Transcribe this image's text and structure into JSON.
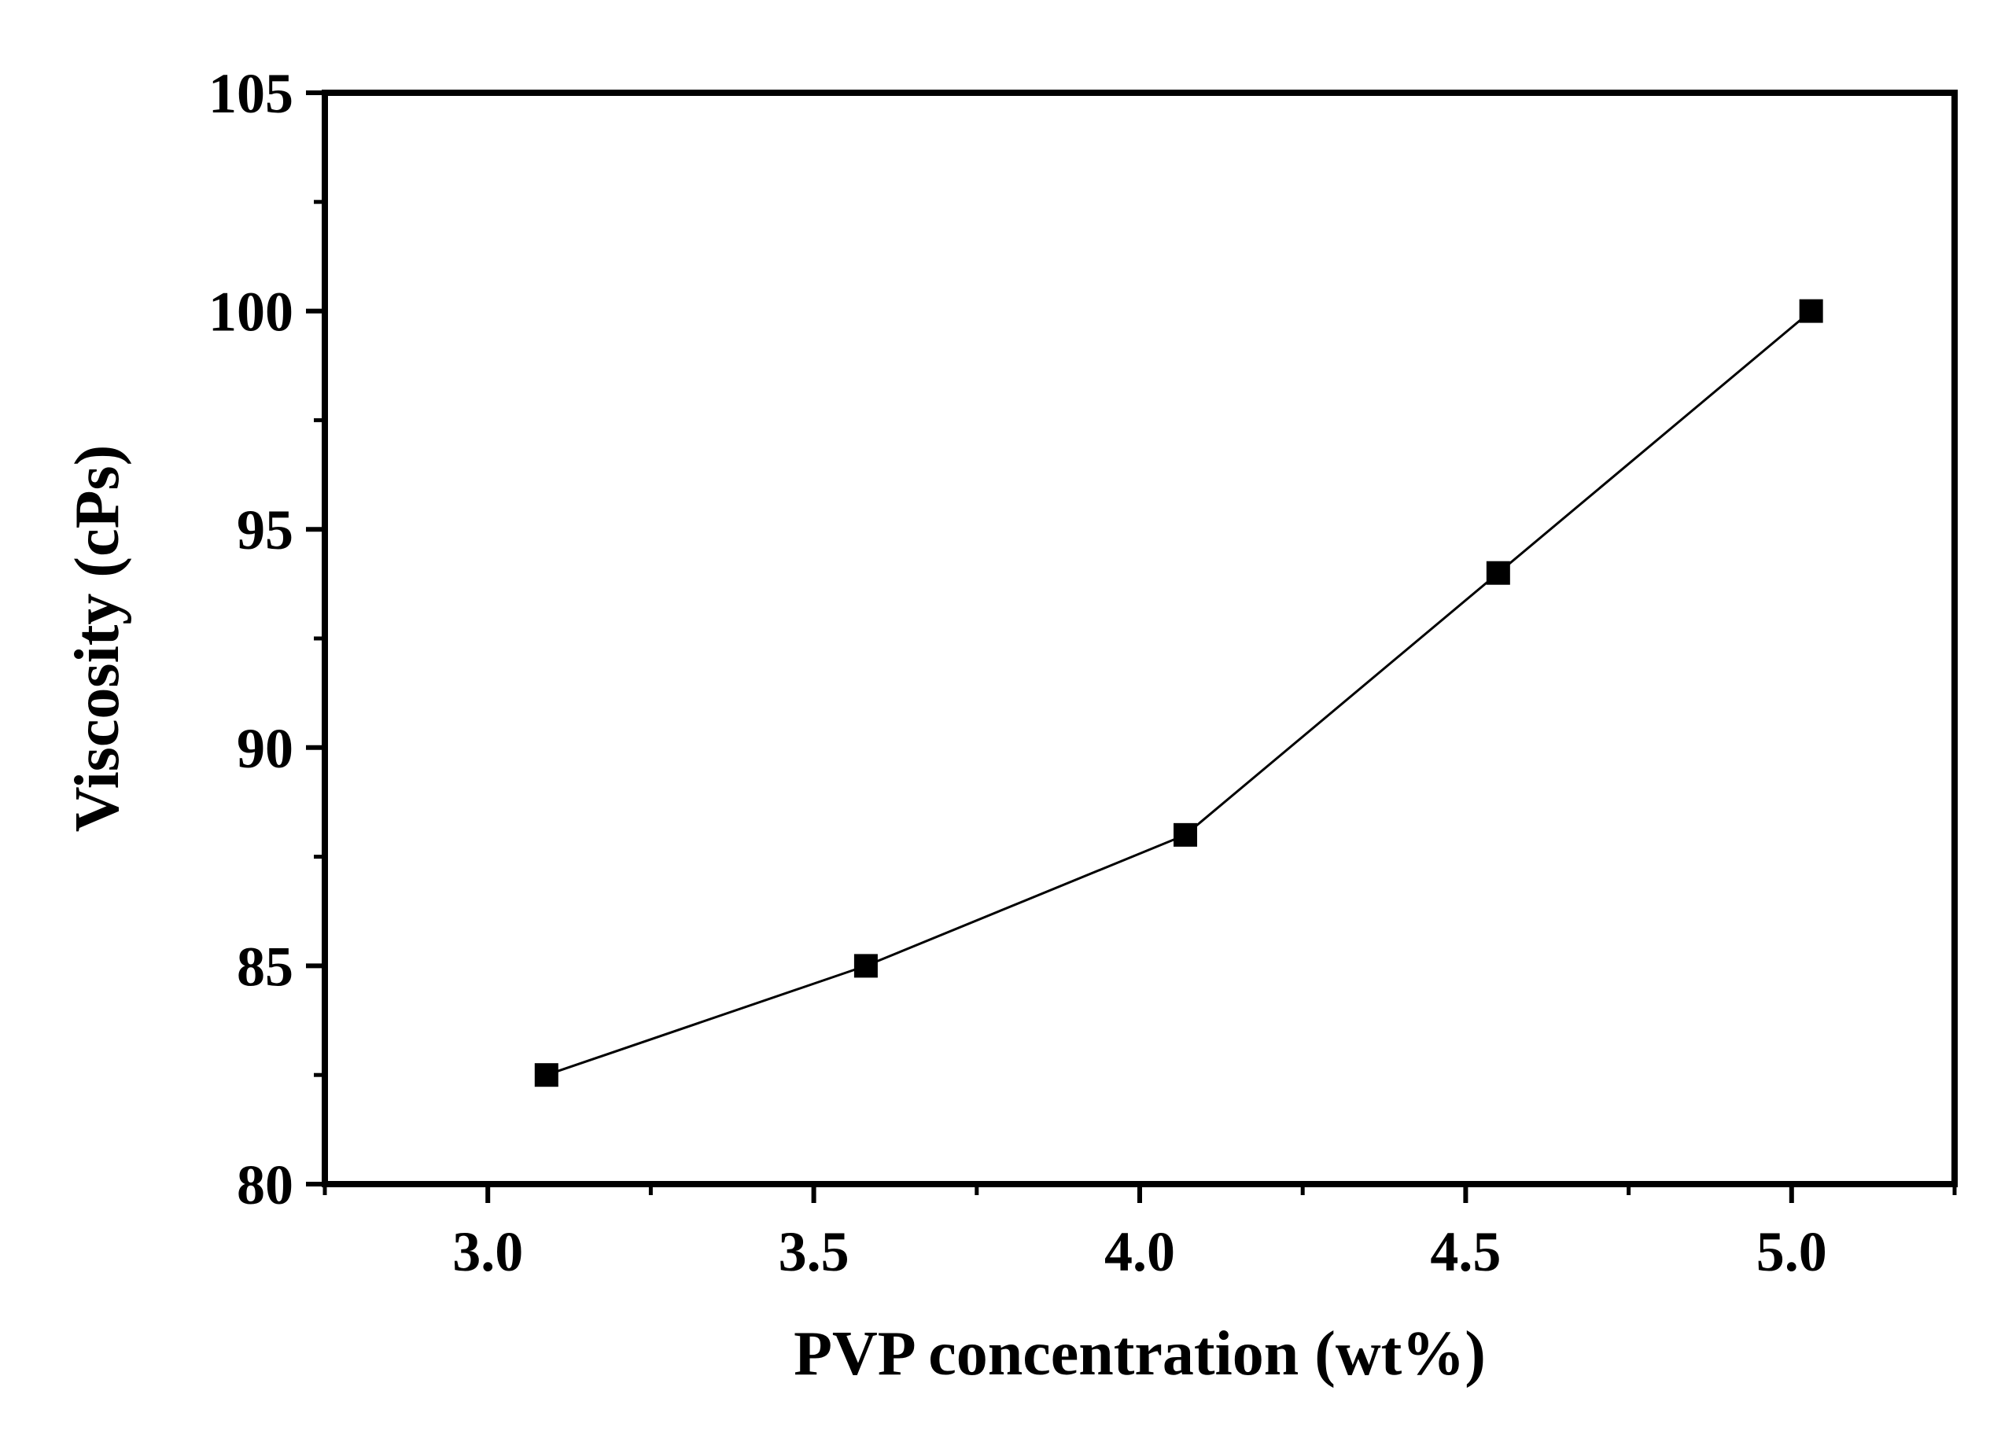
{
  "chart_data": {
    "type": "line",
    "title": "",
    "xlabel": "PVP concentration (wt%)",
    "ylabel": "Viscosity (cPs)",
    "xlim": [
      2.75,
      5.25
    ],
    "ylim": [
      80,
      105
    ],
    "x_major_ticks": [
      3.0,
      3.5,
      4.0,
      4.5,
      5.0
    ],
    "x_tick_labels": [
      "3.0",
      "3.5",
      "4.0",
      "4.5",
      "5.0"
    ],
    "x_minor_ticks": [
      2.75,
      3.25,
      3.75,
      4.25,
      4.75,
      5.25
    ],
    "y_major_ticks": [
      80,
      85,
      90,
      95,
      100,
      105
    ],
    "y_tick_labels": [
      "80",
      "85",
      "90",
      "95",
      "100",
      "105"
    ],
    "y_minor_ticks": [
      82.5,
      87.5,
      92.5,
      97.5,
      102.5
    ],
    "grid": false,
    "legend": false,
    "series": [
      {
        "name": "Viscosity",
        "marker": "square",
        "color": "#000000",
        "x": [
          3.09,
          3.58,
          4.07,
          4.55,
          5.03
        ],
        "y": [
          82.5,
          85,
          88,
          94,
          100
        ]
      }
    ]
  }
}
